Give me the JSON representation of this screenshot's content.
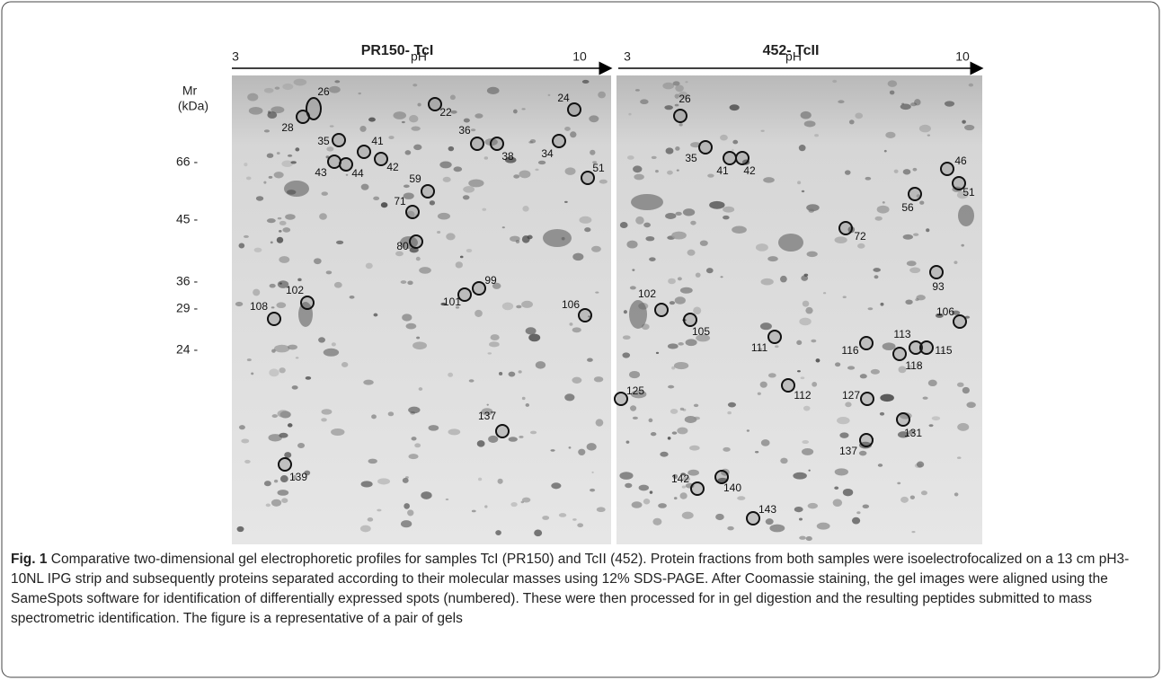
{
  "panels": [
    {
      "title": "PR150- TcI",
      "axis": {
        "start": "3",
        "label": "pH",
        "end": "10"
      },
      "spots": [
        "26",
        "28",
        "22",
        "24",
        "35",
        "41",
        "36",
        "38",
        "34",
        "43",
        "44",
        "42",
        "51",
        "59",
        "71",
        "80",
        "102",
        "99",
        "101",
        "106",
        "108",
        "137",
        "139"
      ]
    },
    {
      "title": "452- TcII",
      "axis": {
        "start": "3",
        "label": "pH",
        "end": "10"
      },
      "spots": [
        "26",
        "35",
        "41",
        "42",
        "46",
        "51",
        "56",
        "72",
        "93",
        "102",
        "105",
        "106",
        "111",
        "116",
        "113",
        "118",
        "115",
        "125",
        "112",
        "127",
        "131",
        "137",
        "142",
        "140",
        "143"
      ]
    }
  ],
  "mr_axis": {
    "title": [
      "Mr",
      "(kDa)"
    ],
    "ticks": [
      "66 -",
      "45 -",
      "36 -",
      "29 -",
      "24 -"
    ]
  },
  "caption": {
    "label": "Fig. 1",
    "text": "Comparative two-dimensional gel electrophoretic profiles for samples TcI (PR150) and TcII (452). Protein fractions from both samples were isoelectrofocalized on a 13 cm pH3-10NL IPG strip and subsequently proteins separated according to their molecular masses using 12% SDS-PAGE. After Coomassie staining, the gel images were aligned using the SameSpots software for identification of differentially expressed spots (numbered). These were then processed for in gel digestion and the resulting peptides submitted to mass spectrometric identification. The figure is a representative of a pair of gels"
  }
}
